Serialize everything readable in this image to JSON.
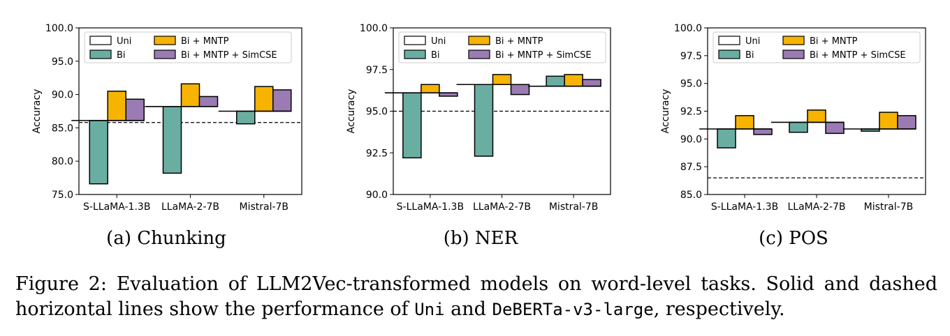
{
  "charts": [
    {
      "subcaption": "(a) Chunking",
      "ylabel": "Accuracy",
      "ylim": [
        75.0,
        100.0
      ],
      "yticks": [
        "100.0",
        "95.0",
        "90.0",
        "85.0",
        "80.0",
        "75.0"
      ],
      "ytick_values": [
        100,
        95,
        90,
        85,
        80,
        75
      ],
      "baseline_dashed": 85.8,
      "categories": [
        "S-LLaMA-1.3B",
        "LLaMA-2-7B",
        "Mistral-7B"
      ],
      "uni": [
        86.1,
        88.2,
        87.5
      ],
      "series": {
        "bi": [
          76.6,
          78.2,
          85.6
        ],
        "bi_mntp": [
          90.5,
          91.6,
          91.2
        ],
        "bi_mntp_simcse": [
          89.3,
          89.7,
          90.7
        ]
      }
    },
    {
      "subcaption": "(b) NER",
      "ylabel": "Accuracy",
      "ylim": [
        90.0,
        100.0
      ],
      "yticks": [
        "100.0",
        "97.5",
        "95.0",
        "92.5",
        "90.0"
      ],
      "ytick_values": [
        100,
        97.5,
        95,
        92.5,
        90
      ],
      "baseline_dashed": 95.0,
      "categories": [
        "S-LLaMA-1.3B",
        "LLaMA-2-7B",
        "Mistral-7B"
      ],
      "uni": [
        96.1,
        96.6,
        96.5
      ],
      "series": {
        "bi": [
          92.2,
          92.3,
          97.1
        ],
        "bi_mntp": [
          96.6,
          97.2,
          97.2
        ],
        "bi_mntp_simcse": [
          95.9,
          96.0,
          96.9
        ]
      }
    },
    {
      "subcaption": "(c) POS",
      "ylabel": "Accuracy",
      "ylim": [
        85.0,
        100.0
      ],
      "yticks": [
        "100.0",
        "97.5",
        "95.0",
        "92.5",
        "90.0",
        "87.5",
        "85.0"
      ],
      "ytick_values": [
        100,
        97.5,
        95,
        92.5,
        90,
        87.5,
        85
      ],
      "baseline_dashed": 86.5,
      "categories": [
        "S-LLaMA-1.3B",
        "LLaMA-2-7B",
        "Mistral-7B"
      ],
      "uni": [
        90.9,
        91.5,
        90.9
      ],
      "series": {
        "bi": [
          89.2,
          90.6,
          90.7
        ],
        "bi_mntp": [
          92.1,
          92.6,
          92.4
        ],
        "bi_mntp_simcse": [
          90.4,
          90.5,
          92.1
        ]
      }
    }
  ],
  "legend": {
    "uni": "Uni",
    "bi": "Bi",
    "bi_mntp": "Bi + MNTP",
    "bi_mntp_simcse": "Bi + MNTP + SimCSE"
  },
  "colors": {
    "bi": "#6aaea2",
    "bi_mntp": "#f6b300",
    "bi_mntp_simcse": "#9a7bb3",
    "uni": "#ffffff"
  },
  "caption": {
    "part1": "Figure 2: Evaluation of LLM2Vec-transformed models on word-level tasks. Solid and dashed horizontal lines show the performance of ",
    "code1": "Uni",
    "part2": " and ",
    "code2": "DeBERTa-v3-large",
    "part3": ", respectively."
  }
}
